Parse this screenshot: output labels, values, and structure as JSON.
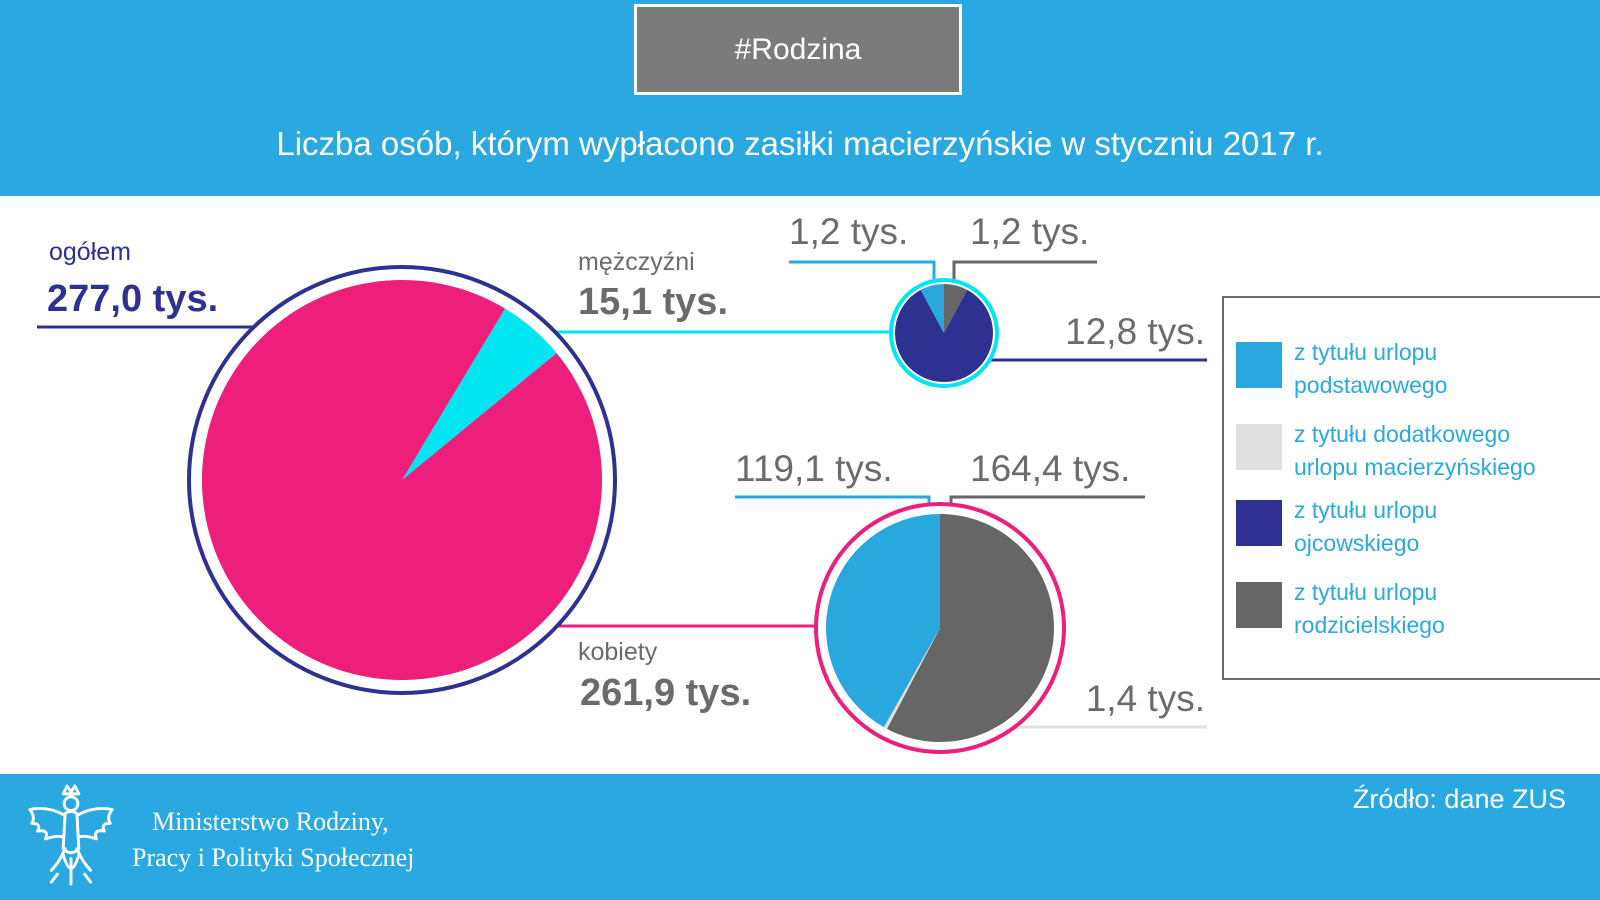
{
  "header": {
    "tag": "#Rodzina",
    "title": "Liczba osób, którym wypłacono zasiłki macierzyńskie w styczniu 2017 r."
  },
  "colors": {
    "header_bg": "#2aa8e2",
    "women": "#ee1f7a",
    "men": "#00e5f2",
    "total_ring": "#2e3192",
    "podstawowy": "#29a8e0",
    "dodatkowy": "#e0e0e0",
    "ojcowski": "#2e3192",
    "rodzicielski": "#666666"
  },
  "chart_data": [
    {
      "type": "pie",
      "name": "ogółem",
      "label": "ogółem",
      "total_label": "277,0 tys.",
      "categories": [
        "kobiety",
        "mężczyźni"
      ],
      "values": [
        261.9,
        15.1
      ],
      "unit": "tys."
    },
    {
      "type": "pie",
      "name": "mężczyźni",
      "label": "mężczyźni",
      "total_label": "15,1 tys.",
      "categories": [
        "z tytułu urlopu podstawowego",
        "z tytułu urlopu ojcowskiego",
        "z tytułu urlopu rodzicielskiego"
      ],
      "values": [
        1.2,
        12.8,
        1.2
      ],
      "value_labels": [
        "1,2 tys.",
        "12,8 tys.",
        "1,2 tys."
      ],
      "unit": "tys."
    },
    {
      "type": "pie",
      "name": "kobiety",
      "label": "kobiety",
      "total_label": "261,9 tys.",
      "categories": [
        "z tytułu urlopu podstawowego",
        "z tytułu urlopu rodzicielskiego",
        "z tytułu dodatkowego urlopu macierzyńskiego"
      ],
      "values": [
        119.1,
        164.4,
        1.4
      ],
      "value_labels": [
        "119,1 tys.",
        "164,4 tys.",
        "1,4 tys."
      ],
      "unit": "tys."
    }
  ],
  "legend": [
    {
      "label_1": "z tytułu urlopu",
      "label_2": "podstawowego",
      "color": "#29a8e0"
    },
    {
      "label_1": "z tytułu dodatkowego",
      "label_2": "urlopu macierzyńskiego",
      "color": "#e0e0e0"
    },
    {
      "label_1": "z tytułu urlopu",
      "label_2": "ojcowskiego",
      "color": "#2e3192"
    },
    {
      "label_1": "z tytułu urlopu",
      "label_2": "rodzicielskiego",
      "color": "#666666"
    }
  ],
  "footer": {
    "ministry_line1": "Ministerstwo Rodziny,",
    "ministry_line2": "Pracy i Polityki Społecznej",
    "source": "Źródło: dane ZUS"
  }
}
